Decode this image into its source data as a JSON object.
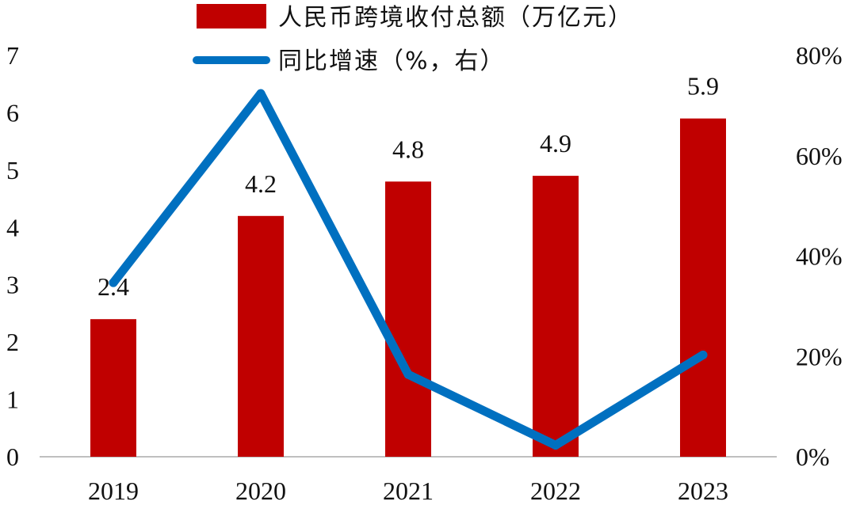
{
  "chart_data": {
    "type": "bar",
    "categories": [
      "2019",
      "2020",
      "2021",
      "2022",
      "2023"
    ],
    "series": [
      {
        "name": "人民币跨境收付总额（万亿元）",
        "type": "bar",
        "axis": "left",
        "values": [
          2.4,
          4.2,
          4.8,
          4.9,
          5.9
        ],
        "data_labels": [
          "2.4",
          "4.2",
          "4.8",
          "4.9",
          "5.9"
        ],
        "color": "#C00000"
      },
      {
        "name": "同比增速（%，右）",
        "type": "line",
        "axis": "right",
        "values": [
          34.7,
          72.4,
          16.4,
          2.3,
          20.3
        ],
        "color": "#0070C0"
      }
    ],
    "y_left": {
      "ylim": [
        0,
        7
      ],
      "ticks": [
        "0",
        "1",
        "2",
        "3",
        "4",
        "5",
        "6",
        "7"
      ]
    },
    "y_right": {
      "ylim": [
        0,
        80
      ],
      "ticks": [
        "0%",
        "20%",
        "40%",
        "60%",
        "80%"
      ]
    },
    "legend": {
      "placement": "top-center",
      "entries": [
        "人民币跨境收付总额（万亿元）",
        "同比增速（%，右）"
      ]
    },
    "grid": false,
    "title": "",
    "xlabel": "",
    "ylabel": ""
  }
}
